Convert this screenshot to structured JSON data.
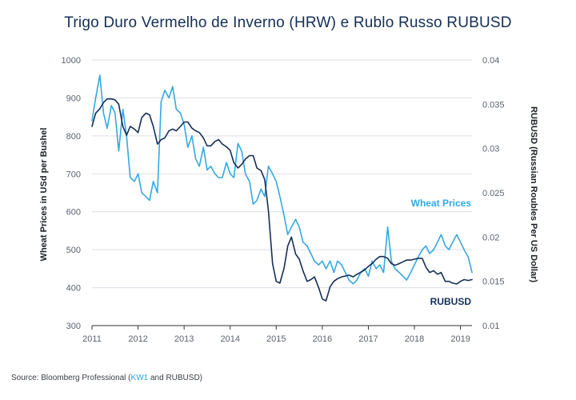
{
  "chart_data": {
    "type": "line",
    "title": "Trigo Duro Vermelho de Inverno (HRW) e Rublo Russo RUBUSD",
    "ylabel_left": "Wheat Prices in USd per Bushel",
    "ylabel_right": "RUBUSD (Russian Roubles Per US Dollar)",
    "x_ticks": [
      "2011",
      "2012",
      "2013",
      "2014",
      "2015",
      "2016",
      "2017",
      "2018",
      "2019"
    ],
    "y_left_ticks": [
      "1000",
      "900",
      "800",
      "700",
      "600",
      "500",
      "400",
      "300"
    ],
    "y_right_ticks": [
      "0.04",
      "0.035",
      "0.03",
      "0.025",
      "0.02",
      "0.015",
      "0.01"
    ],
    "ylim_left": [
      300,
      1000
    ],
    "ylim_right": [
      0.01,
      0.04
    ],
    "xlim": [
      2011.0,
      2019.25
    ],
    "grid": "horizontal",
    "series": [
      {
        "name": "Wheat Prices",
        "axis": "left",
        "color": "#35a8e0",
        "x": [
          2011.0,
          2011.08,
          2011.17,
          2011.25,
          2011.33,
          2011.42,
          2011.5,
          2011.58,
          2011.67,
          2011.75,
          2011.83,
          2011.92,
          2012.0,
          2012.08,
          2012.17,
          2012.25,
          2012.33,
          2012.42,
          2012.5,
          2012.58,
          2012.67,
          2012.75,
          2012.83,
          2012.92,
          2013.0,
          2013.08,
          2013.17,
          2013.25,
          2013.33,
          2013.42,
          2013.5,
          2013.58,
          2013.67,
          2013.75,
          2013.83,
          2013.92,
          2014.0,
          2014.08,
          2014.17,
          2014.25,
          2014.33,
          2014.42,
          2014.5,
          2014.58,
          2014.67,
          2014.75,
          2014.83,
          2014.92,
          2015.0,
          2015.08,
          2015.17,
          2015.25,
          2015.33,
          2015.42,
          2015.5,
          2015.58,
          2015.67,
          2015.75,
          2015.83,
          2015.92,
          2016.0,
          2016.08,
          2016.17,
          2016.25,
          2016.33,
          2016.42,
          2016.5,
          2016.58,
          2016.67,
          2016.75,
          2016.83,
          2016.92,
          2017.0,
          2017.08,
          2017.17,
          2017.25,
          2017.33,
          2017.42,
          2017.5,
          2017.58,
          2017.67,
          2017.75,
          2017.83,
          2017.92,
          2018.0,
          2018.08,
          2018.17,
          2018.25,
          2018.33,
          2018.42,
          2018.5,
          2018.58,
          2018.67,
          2018.75,
          2018.83,
          2018.92,
          2019.0,
          2019.08,
          2019.17,
          2019.25
        ],
        "values": [
          840,
          900,
          960,
          860,
          820,
          880,
          860,
          760,
          870,
          800,
          690,
          680,
          700,
          650,
          640,
          630,
          680,
          650,
          890,
          920,
          900,
          930,
          870,
          860,
          830,
          770,
          800,
          740,
          720,
          770,
          710,
          720,
          700,
          690,
          690,
          730,
          700,
          690,
          780,
          760,
          700,
          680,
          620,
          630,
          660,
          640,
          720,
          700,
          680,
          640,
          590,
          540,
          560,
          580,
          560,
          520,
          510,
          490,
          470,
          460,
          470,
          450,
          470,
          440,
          470,
          460,
          440,
          420,
          410,
          420,
          440,
          450,
          430,
          470,
          450,
          460,
          440,
          560,
          470,
          450,
          440,
          430,
          420,
          440,
          460,
          480,
          500,
          510,
          490,
          500,
          520,
          540,
          510,
          500,
          520,
          540,
          520,
          500,
          480,
          440
        ]
      },
      {
        "name": "RUBUSD",
        "axis": "right",
        "color": "#142f56",
        "x": [
          2011.0,
          2011.08,
          2011.17,
          2011.25,
          2011.33,
          2011.42,
          2011.5,
          2011.58,
          2011.67,
          2011.75,
          2011.83,
          2011.92,
          2012.0,
          2012.08,
          2012.17,
          2012.25,
          2012.33,
          2012.42,
          2012.5,
          2012.58,
          2012.67,
          2012.75,
          2012.83,
          2012.92,
          2013.0,
          2013.08,
          2013.17,
          2013.25,
          2013.33,
          2013.42,
          2013.5,
          2013.58,
          2013.67,
          2013.75,
          2013.83,
          2013.92,
          2014.0,
          2014.08,
          2014.17,
          2014.25,
          2014.33,
          2014.42,
          2014.5,
          2014.58,
          2014.67,
          2014.75,
          2014.83,
          2014.92,
          2015.0,
          2015.08,
          2015.17,
          2015.25,
          2015.33,
          2015.42,
          2015.5,
          2015.58,
          2015.67,
          2015.75,
          2015.83,
          2015.92,
          2016.0,
          2016.08,
          2016.17,
          2016.25,
          2016.33,
          2016.42,
          2016.5,
          2016.58,
          2016.67,
          2016.75,
          2016.83,
          2016.92,
          2017.0,
          2017.08,
          2017.17,
          2017.25,
          2017.33,
          2017.42,
          2017.5,
          2017.58,
          2017.67,
          2017.75,
          2017.83,
          2017.92,
          2018.0,
          2018.08,
          2018.17,
          2018.25,
          2018.33,
          2018.42,
          2018.5,
          2018.58,
          2018.67,
          2018.75,
          2018.83,
          2018.92,
          2019.0,
          2019.08,
          2019.17,
          2019.25
        ],
        "values": [
          0.0325,
          0.034,
          0.0345,
          0.0352,
          0.0356,
          0.0356,
          0.0355,
          0.035,
          0.0325,
          0.0315,
          0.0325,
          0.0322,
          0.0318,
          0.0335,
          0.034,
          0.0338,
          0.0325,
          0.0305,
          0.031,
          0.0312,
          0.032,
          0.0322,
          0.032,
          0.0325,
          0.033,
          0.033,
          0.0323,
          0.032,
          0.0318,
          0.0312,
          0.0303,
          0.0303,
          0.0308,
          0.031,
          0.0305,
          0.0302,
          0.0298,
          0.0284,
          0.0278,
          0.0282,
          0.0288,
          0.0292,
          0.0292,
          0.0278,
          0.0275,
          0.0265,
          0.023,
          0.017,
          0.015,
          0.0148,
          0.0165,
          0.019,
          0.02,
          0.0181,
          0.0175,
          0.0162,
          0.015,
          0.0152,
          0.0155,
          0.0143,
          0.013,
          0.0128,
          0.0144,
          0.015,
          0.0153,
          0.0155,
          0.0156,
          0.0157,
          0.0155,
          0.0158,
          0.016,
          0.0163,
          0.0167,
          0.017,
          0.0175,
          0.0178,
          0.0178,
          0.0176,
          0.017,
          0.0168,
          0.017,
          0.0172,
          0.0174,
          0.0174,
          0.0175,
          0.0176,
          0.0176,
          0.0166,
          0.016,
          0.0162,
          0.0158,
          0.016,
          0.015,
          0.015,
          0.0148,
          0.0147,
          0.015,
          0.0152,
          0.0151,
          0.0152
        ]
      }
    ],
    "annotations": [
      "Wheat Prices",
      "RUBUSD"
    ],
    "source": {
      "prefix": "Source: Bloomberg Professional (",
      "kw": "KW1",
      "suffix": " and RUBUSD)"
    }
  }
}
